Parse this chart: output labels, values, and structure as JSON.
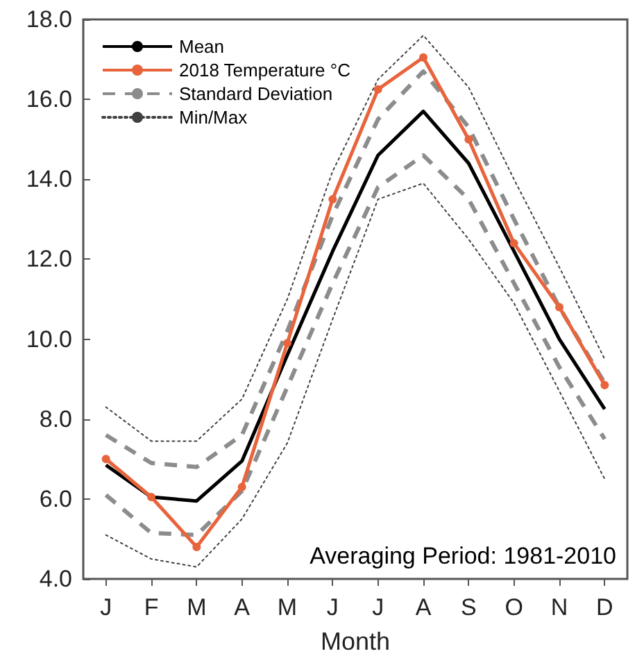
{
  "chart_data": {
    "type": "line",
    "xlabel": "Month",
    "categories": [
      "J",
      "F",
      "M",
      "A",
      "M",
      "J",
      "J",
      "A",
      "S",
      "O",
      "N",
      "D"
    ],
    "series": [
      {
        "name": "Mean",
        "color": "#000000",
        "marker": "none",
        "line_style": "solid",
        "values": [
          6.85,
          6.05,
          5.95,
          6.95,
          9.6,
          12.2,
          14.6,
          15.7,
          14.4,
          12.2,
          10.0,
          8.25
        ]
      },
      {
        "name": "2018 Temperature °C",
        "color": "#e8643c",
        "marker": "circle",
        "line_style": "solid",
        "values": [
          7.0,
          6.05,
          4.8,
          6.3,
          9.9,
          13.5,
          16.25,
          17.05,
          15.0,
          12.4,
          10.8,
          8.85
        ]
      },
      {
        "name": "Standard Deviation",
        "color": "#8c8c8c",
        "marker": "none",
        "line_style": "dashed",
        "values": [
          7.6,
          6.9,
          6.8,
          7.6,
          10.2,
          13.1,
          15.5,
          16.7,
          15.3,
          13.0,
          10.8,
          8.9
        ]
      },
      {
        "color": "#8c8c8c",
        "marker": "none",
        "line_style": "dashed",
        "values": [
          6.1,
          5.15,
          5.1,
          6.2,
          8.8,
          11.4,
          13.8,
          14.6,
          13.5,
          11.4,
          9.3,
          7.5
        ]
      },
      {
        "name": "Min/Max",
        "color": "#404040",
        "marker": "none",
        "line_style": "dotted",
        "values": [
          8.3,
          7.45,
          7.45,
          8.5,
          11.0,
          14.2,
          16.5,
          17.6,
          16.3,
          14.0,
          11.8,
          9.5
        ]
      },
      {
        "color": "#404040",
        "marker": "none",
        "line_style": "dotted",
        "values": [
          5.1,
          4.5,
          4.3,
          5.5,
          7.4,
          10.5,
          13.5,
          13.9,
          12.5,
          10.9,
          8.7,
          6.5
        ]
      }
    ],
    "ylim": [
      4,
      18
    ],
    "yticks": [
      {
        "value": 4,
        "label": "4.0"
      },
      {
        "value": 6,
        "label": "6.0"
      },
      {
        "value": 8,
        "label": "8.0"
      },
      {
        "value": 10,
        "label": "10.0"
      },
      {
        "value": 12,
        "label": "12.0"
      },
      {
        "value": 14,
        "label": "14.0"
      },
      {
        "value": 16,
        "label": "16.0"
      },
      {
        "value": 18,
        "label": "18.0"
      }
    ],
    "grid": false,
    "legend": "top left",
    "annotations": [
      "Averaging Period: 1981-2010"
    ]
  }
}
